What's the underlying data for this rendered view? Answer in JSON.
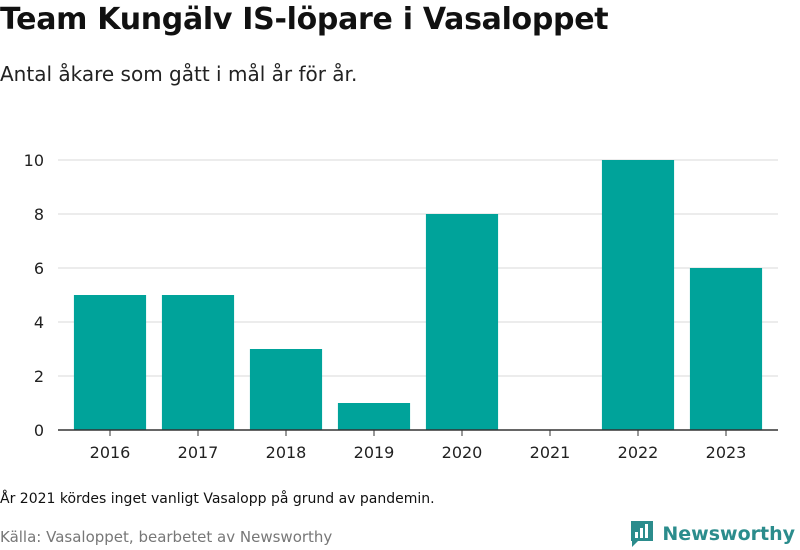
{
  "header": {
    "title": "Team Kungälv IS-löpare i Vasaloppet",
    "subtitle": "Antal åkare som gått i mål år för år."
  },
  "footer": {
    "note": "År 2021 kördes inget vanligt Vasalopp på grund av pandemin.",
    "source": "Källa: Vasaloppet, bearbetet av Newsworthy",
    "brand": "Newsworthy",
    "brand_icon": "newsworthy-logo-icon"
  },
  "colors": {
    "bar": "#00a39a",
    "grid": "#d9d9d9",
    "axis": "#333333",
    "brand": "#2b8c8c"
  },
  "chart_data": {
    "type": "bar",
    "categories": [
      "2016",
      "2017",
      "2018",
      "2019",
      "2020",
      "2021",
      "2022",
      "2023"
    ],
    "values": [
      5,
      5,
      3,
      1,
      8,
      0,
      10,
      6
    ],
    "yticks": [
      0,
      2,
      4,
      6,
      8,
      10
    ],
    "ylim": [
      0,
      10
    ],
    "grid": true,
    "legend": false
  }
}
